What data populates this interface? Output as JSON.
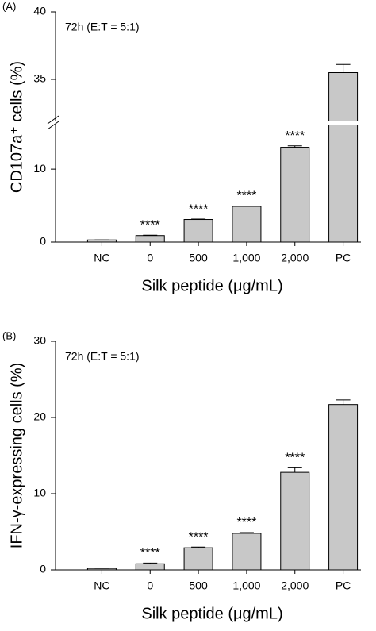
{
  "chart_data": [
    {
      "type": "bar",
      "panel_label": "(A)",
      "annotation": "72h (E:T = 5:1)",
      "ylabel": "CD107a⁺ cells (%)",
      "xlabel": "Silk peptide (μg/mL)",
      "categories": [
        "NC",
        "0",
        "500",
        "1,000",
        "2,000",
        "PC"
      ],
      "values": [
        0.3,
        0.9,
        3.1,
        4.9,
        13.0,
        35.5
      ],
      "errors": [
        0.0,
        0.05,
        0.05,
        0.05,
        0.2,
        0.6
      ],
      "significance": [
        null,
        "****",
        "****",
        "****",
        "****",
        null
      ],
      "color": "#c8c8c8",
      "ylim": [
        0,
        40
      ],
      "y_break": [
        16,
        32
      ],
      "yticks": [
        0,
        10,
        35,
        40
      ],
      "grid": false
    },
    {
      "type": "bar",
      "panel_label": "(B)",
      "annotation": "72h (E:T = 5:1)",
      "ylabel": "IFN-γ-expressing cells (%)",
      "xlabel": "Silk peptide (μg/mL)",
      "categories": [
        "NC",
        "0",
        "500",
        "1,000",
        "2,000",
        "PC"
      ],
      "values": [
        0.2,
        0.8,
        2.9,
        4.8,
        12.8,
        21.7
      ],
      "errors": [
        0.0,
        0.1,
        0.1,
        0.1,
        0.6,
        0.6
      ],
      "significance": [
        null,
        "****",
        "****",
        "****",
        "****",
        null
      ],
      "color": "#c8c8c8",
      "ylim": [
        0,
        30
      ],
      "yticks": [
        0,
        10,
        20,
        30
      ],
      "grid": false
    }
  ]
}
